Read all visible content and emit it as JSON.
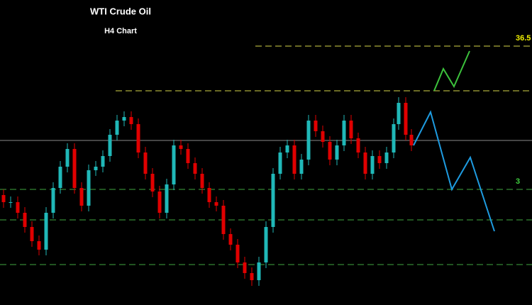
{
  "chart_data": {
    "type": "candlestick",
    "title": "WTI Crude Oil",
    "subtitle": "H4 Chart",
    "xlim": [
      0,
      750
    ],
    "ylim": [
      32.85,
      37.15
    ],
    "up_color": "#20b8b8",
    "down_color": "#e00000",
    "x": [
      5,
      15,
      25,
      35,
      45,
      55,
      65,
      75,
      85,
      95,
      105,
      115,
      125,
      135,
      145,
      155,
      165,
      175,
      185,
      195,
      205,
      215,
      225,
      235,
      245,
      255,
      265,
      275,
      285,
      295,
      305,
      315,
      325,
      335,
      345,
      355,
      365,
      375,
      385,
      395,
      405,
      415,
      425,
      435,
      445,
      455,
      465,
      475,
      485,
      495,
      505,
      515,
      525,
      535,
      545,
      555,
      562,
      572,
      580
    ],
    "open": [
      34.4,
      34.3,
      34.3,
      34.15,
      33.95,
      33.75,
      33.63,
      34.15,
      34.5,
      34.8,
      35.05,
      34.5,
      34.25,
      34.75,
      34.8,
      34.95,
      35.25,
      35.45,
      35.5,
      35.4,
      35.0,
      34.7,
      34.45,
      34.15,
      34.55,
      35.1,
      35.05,
      34.85,
      34.7,
      34.5,
      34.3,
      34.25,
      33.85,
      33.7,
      33.45,
      33.3,
      33.2,
      33.45,
      33.95,
      34.7,
      35.0,
      35.1,
      34.7,
      34.9,
      35.45,
      35.3,
      35.15,
      34.9,
      35.1,
      35.45,
      35.2,
      35.0,
      34.7,
      34.95,
      34.85,
      35.0,
      35.4,
      35.7,
      35.25
    ],
    "high": [
      34.48,
      34.38,
      34.38,
      34.23,
      34.03,
      33.83,
      34.23,
      34.58,
      34.88,
      35.13,
      35.13,
      34.58,
      34.83,
      34.88,
      35.03,
      35.33,
      35.53,
      35.58,
      35.58,
      35.48,
      35.08,
      34.78,
      34.53,
      34.63,
      35.18,
      35.18,
      35.13,
      34.93,
      34.78,
      34.58,
      34.38,
      34.33,
      33.93,
      33.78,
      33.53,
      33.38,
      33.53,
      34.03,
      34.78,
      35.08,
      35.18,
      35.18,
      34.98,
      35.53,
      35.53,
      35.38,
      35.23,
      35.18,
      35.53,
      35.53,
      35.28,
      35.08,
      35.03,
      35.03,
      35.08,
      35.48,
      35.78,
      35.78,
      35.33
    ],
    "low": [
      34.22,
      34.22,
      34.07,
      33.87,
      33.67,
      33.55,
      33.55,
      34.07,
      34.42,
      34.72,
      34.42,
      34.17,
      34.17,
      34.67,
      34.72,
      34.87,
      35.17,
      35.37,
      35.32,
      34.92,
      34.62,
      34.37,
      34.07,
      34.07,
      34.47,
      34.97,
      34.77,
      34.62,
      34.42,
      34.22,
      34.17,
      33.77,
      33.62,
      33.37,
      33.22,
      33.12,
      33.12,
      33.37,
      33.87,
      34.62,
      34.92,
      34.62,
      34.62,
      34.82,
      35.22,
      35.07,
      34.82,
      34.82,
      35.02,
      35.12,
      34.92,
      34.62,
      34.62,
      34.77,
      34.77,
      34.92,
      35.32,
      35.17,
      35.02
    ],
    "close": [
      34.3,
      34.3,
      34.15,
      33.95,
      33.75,
      33.63,
      34.15,
      34.5,
      34.8,
      35.05,
      34.5,
      34.25,
      34.75,
      34.8,
      34.95,
      35.25,
      35.45,
      35.5,
      35.4,
      35.0,
      34.7,
      34.45,
      34.15,
      34.55,
      35.1,
      35.05,
      34.85,
      34.7,
      34.5,
      34.3,
      34.25,
      33.85,
      33.7,
      33.45,
      33.3,
      33.2,
      33.45,
      33.95,
      34.7,
      35.0,
      35.1,
      34.7,
      34.9,
      35.45,
      35.3,
      35.15,
      34.9,
      35.1,
      35.45,
      35.2,
      35.0,
      34.7,
      34.95,
      34.85,
      35.0,
      35.4,
      35.7,
      35.25,
      35.1
    ],
    "levels": [
      {
        "value": 36.5,
        "label": "36.5",
        "from_x": 360,
        "color": "#d6d64a",
        "dashed": true
      },
      {
        "value": 35.87,
        "from_x": 163,
        "color": "#d6d64a",
        "dashed": true
      },
      {
        "value": 35.17,
        "from_x": 0,
        "color": "#8a8a8a",
        "dashed": false
      },
      {
        "value": 34.48,
        "label": "3",
        "from_x": 0,
        "color": "#3fa83f",
        "dashed": true
      },
      {
        "value": 34.05,
        "from_x": 0,
        "color": "#3fa83f",
        "dashed": true
      },
      {
        "value": 33.42,
        "from_x": 0,
        "color": "#3fa83f",
        "dashed": true
      }
    ],
    "projections": [
      {
        "color": "#3cc23c",
        "x": [
          612,
          625,
          640,
          662
        ],
        "values": [
          35.87,
          36.18,
          35.93,
          36.43
        ]
      },
      {
        "color": "#1e9be0",
        "x": [
          583,
          607,
          637,
          663,
          697
        ],
        "values": [
          35.1,
          35.57,
          34.48,
          34.93,
          33.89
        ]
      }
    ]
  }
}
